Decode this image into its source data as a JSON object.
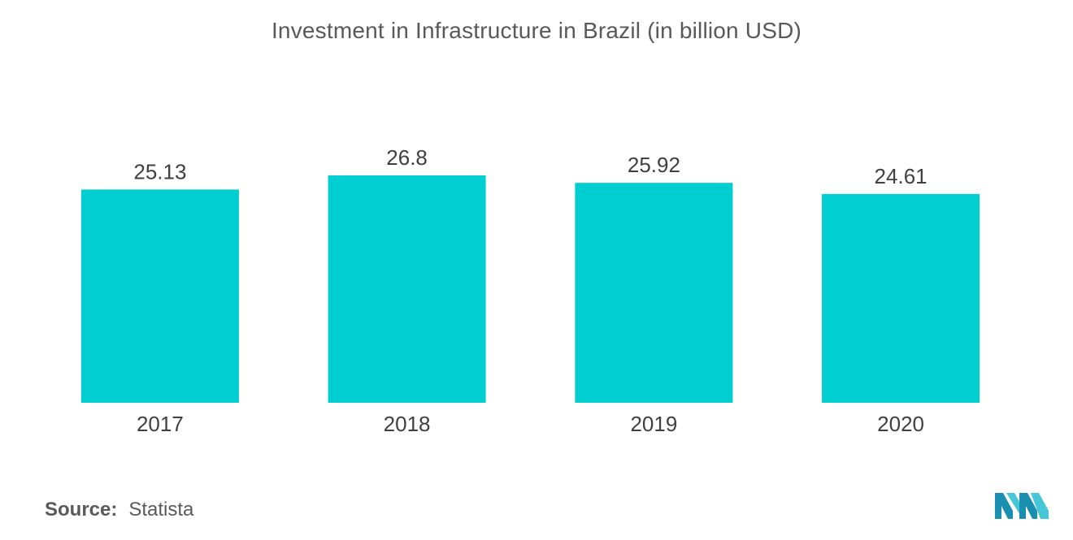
{
  "chart_data": {
    "type": "bar",
    "title": "Investment in Infrastructure in Brazil (in billion USD)",
    "categories": [
      "2017",
      "2018",
      "2019",
      "2020"
    ],
    "values": [
      25.13,
      26.8,
      25.92,
      24.61
    ],
    "value_labels": [
      "25.13",
      "26.8",
      "25.92",
      "24.61"
    ],
    "xlabel": "",
    "ylabel": "",
    "ylim": [
      0,
      26.8
    ],
    "grid": false,
    "bar_color": "#00CED1"
  },
  "source": {
    "label": "Source:",
    "value": "Statista"
  },
  "logo": {
    "icon": "mordor-intelligence-logo-icon",
    "colors": [
      "#1B8FAF",
      "#46C6D6"
    ]
  }
}
